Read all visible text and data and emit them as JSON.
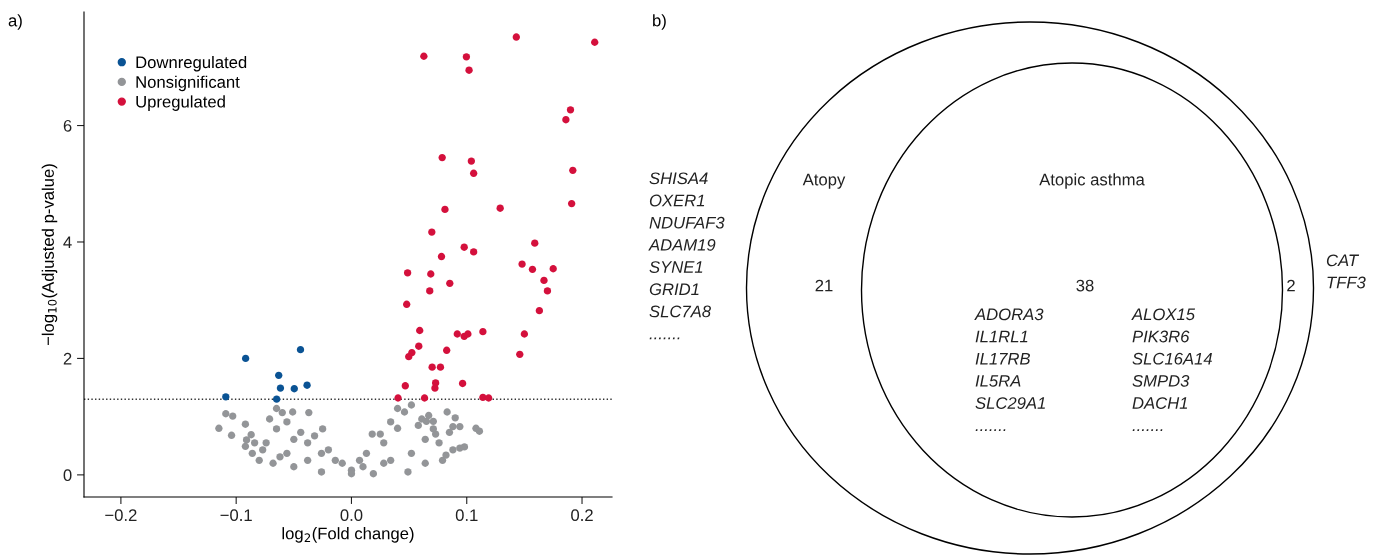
{
  "chart_data": [
    {
      "type": "scatter",
      "title": "a)",
      "xlabel": "log$_{2}$(Fold change)",
      "ylabel": "−log$_{10}$(Adjusted p-value)",
      "xlim": [
        -0.232,
        0.226
      ],
      "ylim": [
        -0.38,
        7.95
      ],
      "xticks": [
        {
          "value": -0.2,
          "label": "−0.2"
        },
        {
          "value": -0.1,
          "label": "−0.1"
        },
        {
          "value": 0,
          "label": "0.0"
        },
        {
          "value": 0.1,
          "label": "0.1"
        },
        {
          "value": 0.2,
          "label": "0.2"
        }
      ],
      "yticks": [
        0,
        2,
        4,
        6
      ],
      "grid": false,
      "legend": "top left",
      "marker": "circle",
      "ref_lines": [
        {
          "axis": "y",
          "value": 1.3,
          "color": "#333333",
          "line_style": "dotted"
        }
      ],
      "series": [
        {
          "name": "Downregulated",
          "color": "#0a5394",
          "x": [
            -0.0918,
            -0.0442,
            -0.0631,
            -0.0616,
            -0.0496,
            -0.0385,
            -0.109,
            -0.0649
          ],
          "values": [
            2.0,
            2.15,
            1.71,
            1.49,
            1.48,
            1.54,
            1.34,
            1.3
          ]
        },
        {
          "name": "Nonsignificant",
          "color": "#939598",
          "x": [
            -0.109,
            -0.103,
            -0.115,
            -0.104,
            -0.092,
            -0.087,
            -0.071,
            -0.065,
            -0.06,
            -0.051,
            -0.037,
            -0.025,
            -0.091,
            -0.084,
            -0.077,
            -0.065,
            -0.056,
            -0.044,
            -0.032,
            -0.02,
            -0.008,
            0.0,
            -0.08,
            -0.068,
            -0.05,
            -0.026,
            0.0,
            0.019,
            0.049,
            0.079,
            0.094,
            0.098,
            0.088,
            0.082,
            0.108,
            0.111,
            0.094,
            0.088,
            0.09,
            0.083,
            0.071,
            0.065,
            0.067,
            0.052,
            0.046,
            0.04,
            0.034,
            0.025,
            0.018,
            0.013,
            0.007,
            0.028,
            0.04,
            0.058,
            0.064,
            0.076,
            0.085,
            0.073,
            -0.038,
            -0.05,
            -0.056,
            -0.086,
            -0.092,
            -0.074,
            -0.026,
            -0.014,
            0.028,
            0.052,
            0.064,
            0.01,
            0.034,
            -0.038,
            -0.062,
            0.061,
            0.071
          ],
          "values": [
            1.05,
            1.01,
            0.8,
            0.68,
            0.87,
            0.69,
            0.96,
            1.14,
            1.07,
            1.08,
            1.07,
            0.79,
            0.6,
            0.55,
            0.43,
            0.79,
            0.91,
            0.73,
            0.67,
            0.43,
            0.2,
            0.08,
            0.25,
            0.2,
            0.14,
            0.05,
            0.02,
            0.02,
            0.05,
            0.25,
            0.46,
            0.48,
            0.43,
            0.34,
            0.8,
            0.75,
            0.83,
            0.83,
            0.98,
            1.08,
            0.92,
            0.92,
            1.02,
            1.2,
            1.08,
            1.14,
            0.91,
            0.7,
            0.7,
            0.37,
            0.25,
            0.55,
            0.8,
            0.85,
            0.61,
            0.55,
            0.73,
            0.7,
            0.55,
            0.61,
            0.37,
            0.37,
            0.49,
            0.55,
            0.37,
            0.25,
            0.2,
            0.37,
            0.2,
            0.14,
            0.25,
            0.25,
            0.31,
            0.96,
            0.79
          ]
        },
        {
          "name": "Upregulated",
          "color": "#d4103c",
          "x": [
            0.0628,
            0.0997,
            0.102,
            0.143,
            0.211,
            0.19,
            0.186,
            0.0787,
            0.104,
            0.106,
            0.192,
            0.0811,
            0.129,
            0.191,
            0.0697,
            0.159,
            0.0978,
            0.106,
            0.0781,
            0.148,
            0.157,
            0.175,
            0.0487,
            0.0688,
            0.167,
            0.0853,
            0.0679,
            0.17,
            0.0479,
            0.163,
            0.0592,
            0.0918,
            0.0978,
            0.101,
            0.114,
            0.15,
            0.0584,
            0.0524,
            0.0497,
            0.0826,
            0.146,
            0.07,
            0.0772,
            0.0467,
            0.073,
            0.0724,
            0.0964,
            0.0404,
            0.0634,
            0.114,
            0.119
          ],
          "values": [
            7.19,
            7.18,
            6.95,
            7.52,
            7.43,
            6.27,
            6.1,
            5.45,
            5.39,
            5.18,
            5.23,
            4.56,
            4.58,
            4.66,
            4.17,
            3.98,
            3.91,
            3.83,
            3.75,
            3.62,
            3.53,
            3.54,
            3.47,
            3.45,
            3.34,
            3.29,
            3.16,
            3.16,
            2.93,
            2.82,
            2.48,
            2.42,
            2.38,
            2.42,
            2.46,
            2.42,
            2.21,
            2.1,
            2.03,
            2.14,
            2.07,
            1.85,
            1.85,
            1.53,
            1.58,
            1.49,
            1.57,
            1.32,
            1.32,
            1.33,
            1.32
          ]
        }
      ]
    },
    {
      "type": "other",
      "title": "b)",
      "categories": [
        "Atopy",
        "Atopic asthma"
      ],
      "annotations": [
        "21",
        "38",
        "2",
        "SHISA4\nOXER1\nNDUFAF3\nADAM19\nSYNE1\nGRID1\nSLC7A8\n.......",
        "ADORA3\nIL1RL1\nIL17RB\nIL5RA\nSLC29A1\n.......",
        "ALOX15\nPIK3R6\nSLC16A14\nSMPD3\nDACH1\n.......",
        "CAT\nTFF3"
      ]
    }
  ]
}
